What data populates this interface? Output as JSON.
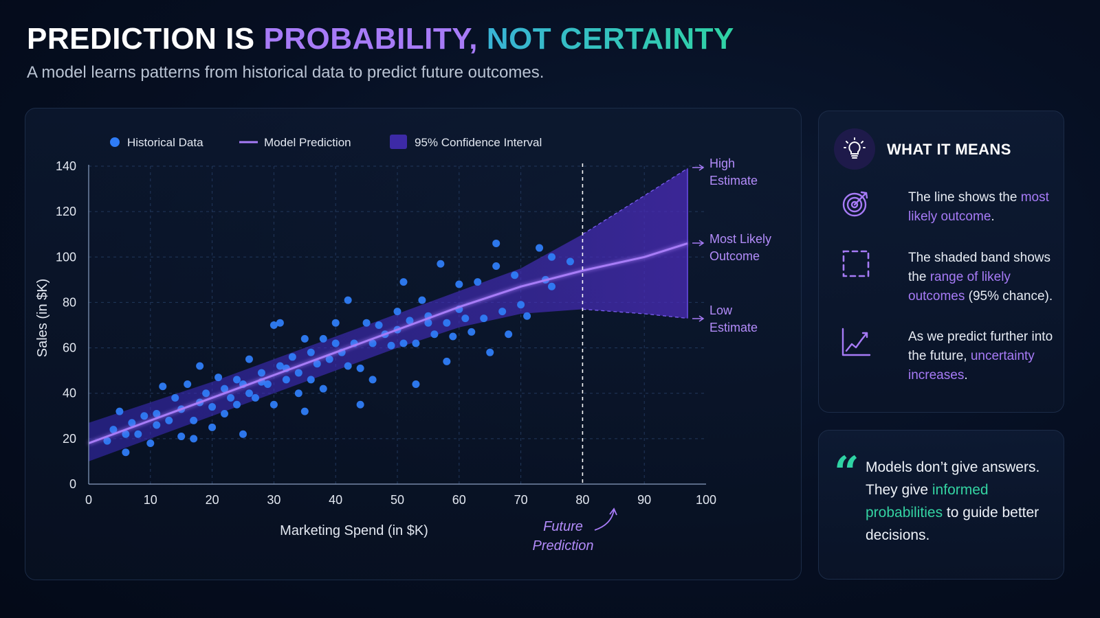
{
  "header": {
    "title_part1": "PREDICTION IS",
    "title_part2": "PROBABILITY,",
    "title_part3": "NOT CERTAINTY",
    "subtitle": "A model learns patterns from historical data to predict future outcomes."
  },
  "colors": {
    "points": "#2f7cf6",
    "prediction_line": "#a77bf7",
    "band": "#4b2fc9",
    "accent_teal": "#2fd3a4"
  },
  "chart_data": {
    "type": "scatter",
    "xlabel": "Marketing Spend (in $K)",
    "ylabel": "Sales (in $K)",
    "xlim": [
      0,
      100
    ],
    "ylim": [
      0,
      140
    ],
    "x_ticks": [
      0,
      10,
      20,
      30,
      40,
      50,
      60,
      70,
      80,
      90,
      100
    ],
    "y_ticks": [
      0,
      20,
      40,
      60,
      80,
      100,
      120,
      140
    ],
    "grid": true,
    "legend_position": "top-left",
    "legend": [
      "Historical Data",
      "Model Prediction",
      "95% Confidence Interval"
    ],
    "future_cutoff_x": 80,
    "series": [
      {
        "name": "Historical Data",
        "kind": "scatter",
        "points": [
          [
            3,
            19
          ],
          [
            4,
            24
          ],
          [
            5,
            32
          ],
          [
            6,
            14
          ],
          [
            6,
            22
          ],
          [
            7,
            27
          ],
          [
            8,
            22
          ],
          [
            9,
            30
          ],
          [
            10,
            18
          ],
          [
            11,
            26
          ],
          [
            11,
            31
          ],
          [
            12,
            43
          ],
          [
            13,
            28
          ],
          [
            14,
            38
          ],
          [
            15,
            21
          ],
          [
            15,
            33
          ],
          [
            16,
            44
          ],
          [
            17,
            28
          ],
          [
            17,
            20
          ],
          [
            18,
            52
          ],
          [
            18,
            36
          ],
          [
            19,
            40
          ],
          [
            20,
            25
          ],
          [
            20,
            34
          ],
          [
            21,
            47
          ],
          [
            22,
            42
          ],
          [
            22,
            31
          ],
          [
            23,
            38
          ],
          [
            24,
            35
          ],
          [
            24,
            46
          ],
          [
            25,
            22
          ],
          [
            25,
            44
          ],
          [
            26,
            40
          ],
          [
            26,
            55
          ],
          [
            27,
            38
          ],
          [
            28,
            49
          ],
          [
            28,
            45
          ],
          [
            29,
            44
          ],
          [
            30,
            70
          ],
          [
            30,
            35
          ],
          [
            31,
            71
          ],
          [
            31,
            52
          ],
          [
            32,
            46
          ],
          [
            32,
            51
          ],
          [
            33,
            56
          ],
          [
            34,
            40
          ],
          [
            34,
            49
          ],
          [
            35,
            64
          ],
          [
            35,
            32
          ],
          [
            36,
            58
          ],
          [
            36,
            46
          ],
          [
            37,
            53
          ],
          [
            38,
            64
          ],
          [
            38,
            42
          ],
          [
            39,
            55
          ],
          [
            40,
            71
          ],
          [
            40,
            62
          ],
          [
            41,
            58
          ],
          [
            42,
            52
          ],
          [
            42,
            81
          ],
          [
            43,
            62
          ],
          [
            44,
            51
          ],
          [
            44,
            35
          ],
          [
            45,
            71
          ],
          [
            46,
            62
          ],
          [
            46,
            46
          ],
          [
            47,
            70
          ],
          [
            48,
            66
          ],
          [
            49,
            61
          ],
          [
            50,
            76
          ],
          [
            50,
            68
          ],
          [
            51,
            89
          ],
          [
            51,
            62
          ],
          [
            52,
            72
          ],
          [
            53,
            62
          ],
          [
            53,
            44
          ],
          [
            54,
            81
          ],
          [
            55,
            71
          ],
          [
            55,
            74
          ],
          [
            56,
            66
          ],
          [
            57,
            97
          ],
          [
            58,
            54
          ],
          [
            58,
            71
          ],
          [
            59,
            65
          ],
          [
            60,
            88
          ],
          [
            60,
            77
          ],
          [
            61,
            73
          ],
          [
            62,
            67
          ],
          [
            63,
            89
          ],
          [
            64,
            73
          ],
          [
            65,
            58
          ],
          [
            66,
            106
          ],
          [
            66,
            96
          ],
          [
            67,
            76
          ],
          [
            68,
            66
          ],
          [
            69,
            92
          ],
          [
            70,
            79
          ],
          [
            71,
            74
          ],
          [
            73,
            104
          ],
          [
            74,
            90
          ],
          [
            75,
            100
          ],
          [
            75,
            87
          ],
          [
            78,
            98
          ]
        ]
      },
      {
        "name": "Model Prediction",
        "kind": "line",
        "points": [
          [
            0,
            18
          ],
          [
            10,
            28
          ],
          [
            20,
            38
          ],
          [
            30,
            48
          ],
          [
            40,
            58
          ],
          [
            50,
            68
          ],
          [
            60,
            78
          ],
          [
            70,
            87
          ],
          [
            80,
            94
          ],
          [
            90,
            100
          ],
          [
            97,
            106
          ]
        ]
      },
      {
        "name": "95% Confidence Interval",
        "kind": "band",
        "upper": [
          [
            0,
            27
          ],
          [
            10,
            36
          ],
          [
            20,
            45
          ],
          [
            30,
            55
          ],
          [
            40,
            65
          ],
          [
            50,
            75
          ],
          [
            60,
            85
          ],
          [
            70,
            95
          ],
          [
            80,
            110
          ],
          [
            90,
            127
          ],
          [
            97,
            139
          ]
        ],
        "lower": [
          [
            0,
            10
          ],
          [
            10,
            20
          ],
          [
            20,
            30
          ],
          [
            30,
            40
          ],
          [
            40,
            50
          ],
          [
            50,
            60
          ],
          [
            60,
            69
          ],
          [
            70,
            75
          ],
          [
            80,
            77
          ],
          [
            90,
            75
          ],
          [
            97,
            73
          ]
        ]
      }
    ],
    "annotations": {
      "high_line1": "High",
      "high_line2": "Estimate",
      "likely_line1": "Most Likely",
      "likely_line2": "Outcome",
      "low_line1": "Low",
      "low_line2": "Estimate",
      "future_line1": "Future",
      "future_line2": "Prediction"
    }
  },
  "means": {
    "title": "WHAT IT MEANS",
    "icon": "lightbulb-icon",
    "items": [
      {
        "icon": "target-icon",
        "before": "The line shows the ",
        "highlight": "most likely outcome",
        "after": "."
      },
      {
        "icon": "dashed-square-icon",
        "before": "The shaded band shows the ",
        "highlight": "range of likely outcomes",
        "after": " (95% chance)."
      },
      {
        "icon": "trend-chart-icon",
        "before": "As we predict further into the future, ",
        "highlight": "uncertainty increases",
        "after": "."
      }
    ]
  },
  "quote": {
    "mark": "“",
    "before": "Models don’t give answers. They give ",
    "highlight": "informed probabilities",
    "after": " to guide better decisions."
  }
}
